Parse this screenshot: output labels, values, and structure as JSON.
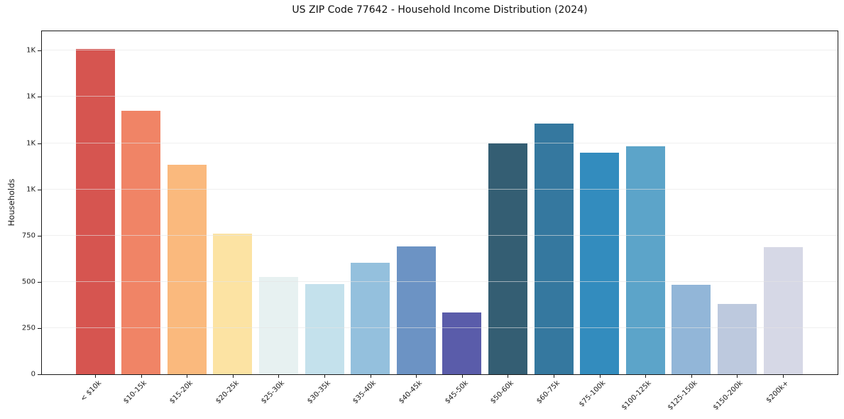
{
  "chart_data": {
    "type": "bar",
    "title": "US ZIP Code 77642 - Household Income Distribution (2024)",
    "xlabel": "",
    "ylabel": "Households",
    "ylim": [
      0,
      1855
    ],
    "grid": "horizontal",
    "legend": "none",
    "background": "#ffffff",
    "categories": [
      "< $10k",
      "$10-15k",
      "$15-20k",
      "$20-25k",
      "$25-30k",
      "$30-35k",
      "$35-40k",
      "$40-45k",
      "$45-50k",
      "$50-60k",
      "$60-75k",
      "$75-100k",
      "$100-125k",
      "$125-150k",
      "$150-200k",
      "$200k+"
    ],
    "values": [
      1760,
      1425,
      1133,
      762,
      526,
      488,
      604,
      692,
      333,
      1247,
      1355,
      1200,
      1233,
      483,
      381,
      686
    ],
    "bar_colors": [
      "#d65550",
      "#f08466",
      "#fab97d",
      "#fce3a3",
      "#e7f1f1",
      "#c4e1ec",
      "#94c0dd",
      "#6c93c4",
      "#5a5caa",
      "#345e73",
      "#35789f",
      "#338cbe",
      "#5ca4c9",
      "#92b6d8",
      "#bdc9de",
      "#d6d8e6"
    ],
    "y_ticks": [
      {
        "value": 0,
        "label": "0"
      },
      {
        "value": 250,
        "label": "250"
      },
      {
        "value": 500,
        "label": "500"
      },
      {
        "value": 750,
        "label": "750"
      },
      {
        "value": 1000,
        "label": "1K"
      },
      {
        "value": 1250,
        "label": "1K"
      },
      {
        "value": 1500,
        "label": "1K"
      },
      {
        "value": 1750,
        "label": "1K"
      }
    ]
  }
}
